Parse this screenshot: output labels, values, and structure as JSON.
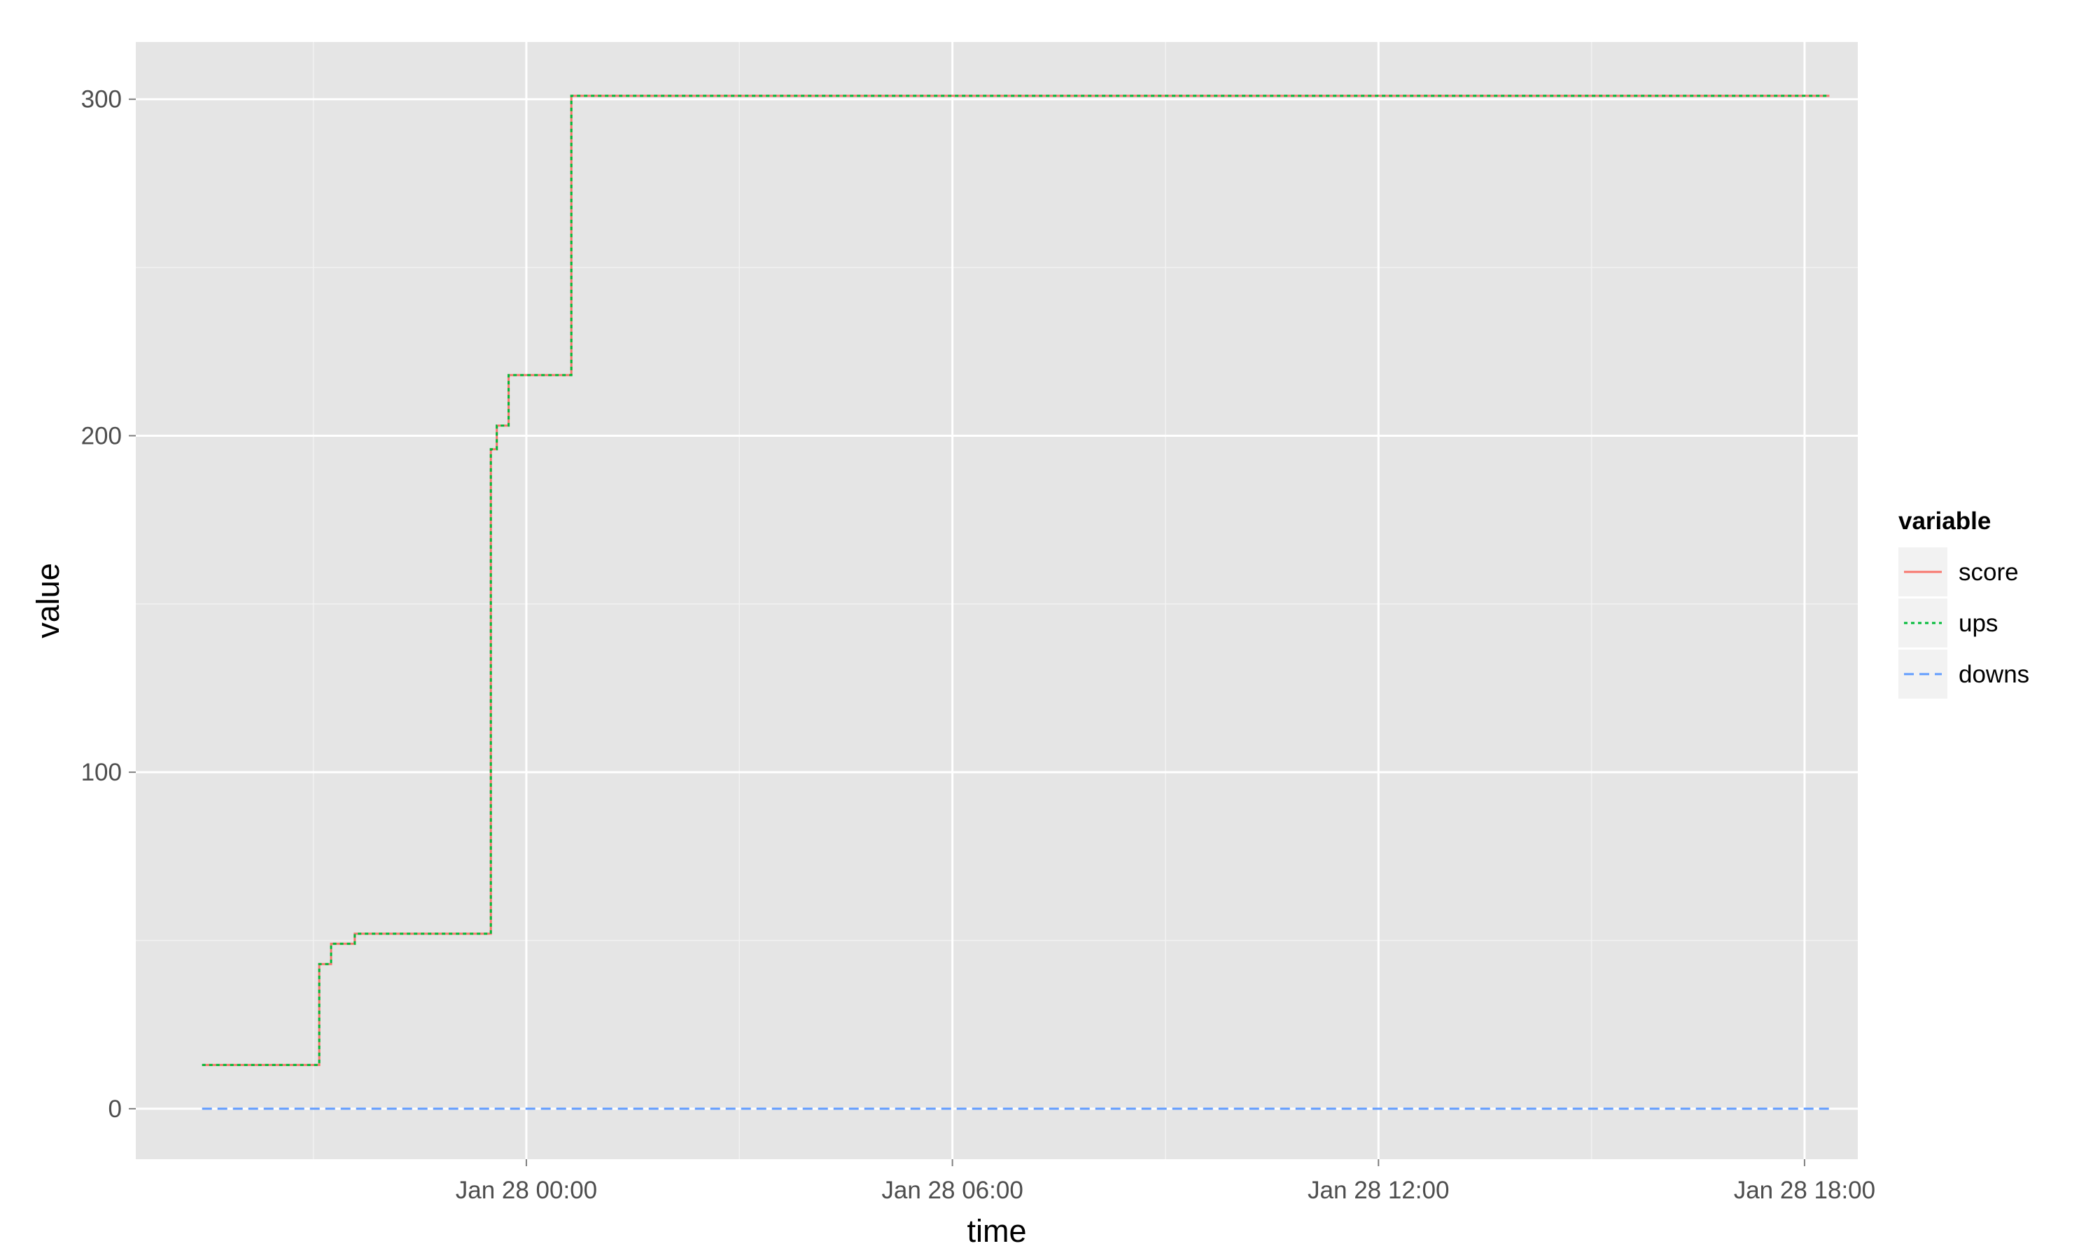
{
  "chart_data": {
    "type": "line",
    "title": "",
    "xlabel": "time",
    "ylabel": "value",
    "xlim": [
      "2015-01-27T18:30",
      "2015-01-28T18:45"
    ],
    "ylim": [
      -15,
      317
    ],
    "x_ticks": [
      {
        "value": "2015-01-28T00:00",
        "label": "Jan 28 00:00"
      },
      {
        "value": "2015-01-28T06:00",
        "label": "Jan 28 06:00"
      },
      {
        "value": "2015-01-28T12:00",
        "label": "Jan 28 12:00"
      },
      {
        "value": "2015-01-28T18:00",
        "label": "Jan 28 18:00"
      }
    ],
    "y_ticks": [
      {
        "value": 0,
        "label": "0"
      },
      {
        "value": 100,
        "label": "100"
      },
      {
        "value": 200,
        "label": "200"
      },
      {
        "value": 300,
        "label": "300"
      }
    ],
    "grid": true,
    "legend": {
      "title": "variable",
      "position": "right"
    },
    "series": [
      {
        "name": "score",
        "color": "#F8766D",
        "line_style": "solid",
        "x": [
          "2015-01-27T19:26",
          "2015-01-27T21:00",
          "2015-01-27T21:05",
          "2015-01-27T21:15",
          "2015-01-27T21:35",
          "2015-01-27T22:00",
          "2015-01-27T23:30",
          "2015-01-27T23:35",
          "2015-01-27T23:45",
          "2015-01-28T00:38",
          "2015-01-28T18:21"
        ],
        "values": [
          13,
          13,
          43,
          49,
          52,
          52,
          196,
          203,
          218,
          301,
          301
        ]
      },
      {
        "name": "ups",
        "color": "#00BA38",
        "line_style": "dotted",
        "x": [
          "2015-01-27T19:26",
          "2015-01-27T21:00",
          "2015-01-27T21:05",
          "2015-01-27T21:15",
          "2015-01-27T21:35",
          "2015-01-27T22:00",
          "2015-01-27T23:30",
          "2015-01-27T23:35",
          "2015-01-27T23:45",
          "2015-01-28T00:38",
          "2015-01-28T18:21"
        ],
        "values": [
          13,
          13,
          43,
          49,
          52,
          52,
          196,
          203,
          218,
          301,
          301
        ]
      },
      {
        "name": "downs",
        "color": "#619CFF",
        "line_style": "dashed",
        "x": [
          "2015-01-27T19:26",
          "2015-01-28T18:21"
        ],
        "values": [
          0,
          0
        ]
      }
    ]
  }
}
